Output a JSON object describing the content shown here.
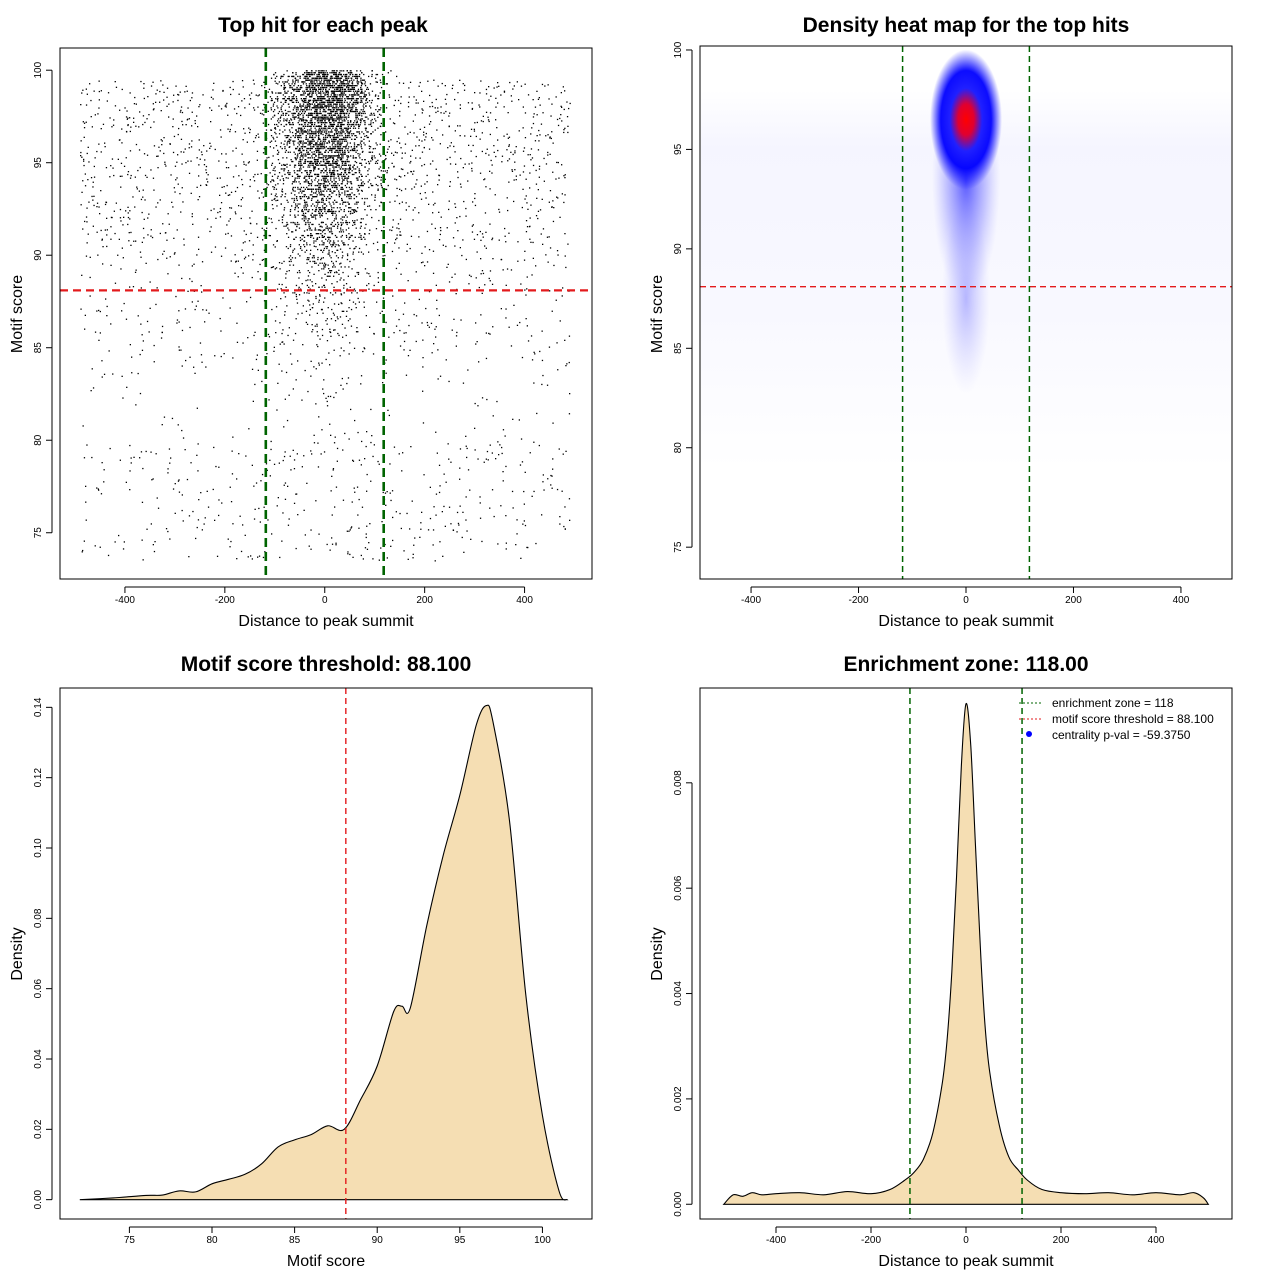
{
  "colors": {
    "threshold": "#e31a1c",
    "zone": "#006400",
    "fill": "#f5deb3",
    "point": "#000000",
    "legend_dot": "#0000ff"
  },
  "chart_data": [
    {
      "id": "scatter",
      "type": "scatter",
      "title": "Top hit for each peak",
      "xlabel": "Distance to peak summit",
      "ylabel": "Motif score",
      "xlim": [
        -530,
        535
      ],
      "ylim": [
        72.5,
        101.2
      ],
      "xticks": [
        -400,
        -200,
        0,
        200,
        400
      ],
      "yticks": [
        75,
        80,
        85,
        90,
        95,
        100
      ],
      "threshold": 88.1,
      "zone": [
        -118,
        118
      ],
      "approx_points": 6000
    },
    {
      "id": "heatmap",
      "type": "heatmap",
      "title": "Density heat map for the top hits",
      "xlabel": "Distance to peak summit",
      "ylabel": "Motif score",
      "xlim": [
        -495,
        495
      ],
      "ylim": [
        73.4,
        100.2
      ],
      "xticks": [
        -400,
        -200,
        0,
        200,
        400
      ],
      "yticks": [
        75,
        80,
        85,
        90,
        95,
        100
      ],
      "threshold": 88.1,
      "zone": [
        -118,
        118
      ],
      "peak": {
        "x": 0,
        "y": 96.5
      }
    },
    {
      "id": "scoredens",
      "type": "area",
      "title": "Motif score threshold: 88.100",
      "xlabel": "Motif score",
      "ylabel": "Density",
      "xlim": [
        70.8,
        103.0
      ],
      "ylim": [
        -0.0055,
        0.1455
      ],
      "xticks": [
        75,
        80,
        85,
        90,
        95,
        100
      ],
      "yticks": [
        0.0,
        0.02,
        0.04,
        0.06,
        0.08,
        0.1,
        0.12,
        0.14
      ],
      "ytick_labels": [
        "0.00",
        "0.02",
        "0.04",
        "0.06",
        "0.08",
        "0.10",
        "0.12",
        "0.14"
      ],
      "threshold": 88.1,
      "x": [
        72,
        74,
        76,
        77,
        78,
        79,
        80,
        81,
        82,
        83,
        84,
        85,
        86,
        87,
        88,
        89,
        90,
        91,
        91.5,
        92,
        93,
        94,
        95,
        96,
        96.6,
        97,
        98,
        99,
        100,
        101,
        101.5
      ],
      "y": [
        0.0,
        0.0005,
        0.0012,
        0.0013,
        0.0025,
        0.0022,
        0.0045,
        0.0058,
        0.0072,
        0.0102,
        0.015,
        0.017,
        0.0185,
        0.021,
        0.02,
        0.0285,
        0.038,
        0.0535,
        0.055,
        0.0545,
        0.078,
        0.098,
        0.115,
        0.135,
        0.1405,
        0.136,
        0.108,
        0.058,
        0.024,
        0.0025,
        0.0
      ]
    },
    {
      "id": "distdens",
      "type": "area",
      "title": "Enrichment zone: 118.00",
      "xlabel": "Distance to peak summit",
      "ylabel": "Density",
      "xlim": [
        -560,
        560
      ],
      "ylim": [
        -0.00028,
        0.0098
      ],
      "xticks": [
        -400,
        -200,
        0,
        200,
        400
      ],
      "yticks": [
        0.0,
        0.002,
        0.004,
        0.006,
        0.008
      ],
      "ytick_labels": [
        "0.000",
        "0.002",
        "0.004",
        "0.006",
        "0.008"
      ],
      "zone": [
        -118,
        118
      ],
      "x": [
        -510,
        -490,
        -470,
        -450,
        -430,
        -400,
        -350,
        -300,
        -250,
        -200,
        -160,
        -130,
        -110,
        -90,
        -70,
        -50,
        -40,
        -30,
        -20,
        -10,
        0,
        10,
        20,
        30,
        40,
        50,
        70,
        90,
        110,
        130,
        160,
        200,
        250,
        300,
        350,
        400,
        450,
        480,
        500,
        510
      ],
      "y": [
        0.0,
        0.00018,
        0.00015,
        0.00022,
        0.00018,
        0.0002,
        0.00022,
        0.00018,
        0.00024,
        0.0002,
        0.00028,
        0.00045,
        0.0006,
        0.00085,
        0.00135,
        0.0023,
        0.0031,
        0.0044,
        0.0062,
        0.0083,
        0.0095,
        0.0087,
        0.0068,
        0.0049,
        0.0034,
        0.0025,
        0.0015,
        0.0009,
        0.00065,
        0.00045,
        0.00028,
        0.00022,
        0.0002,
        0.00022,
        0.00018,
        0.00022,
        0.00018,
        0.00022,
        0.00012,
        0.0
      ],
      "legend": [
        {
          "label": "enrichment zone = 118",
          "kind": "dotted-line",
          "color": "#006400"
        },
        {
          "label": "motif score threshold = 88.100",
          "kind": "dotted-line",
          "color": "#e31a1c"
        },
        {
          "label": "centrality p-val = -59.3750",
          "kind": "dot",
          "color": "#0000ff"
        }
      ]
    }
  ]
}
